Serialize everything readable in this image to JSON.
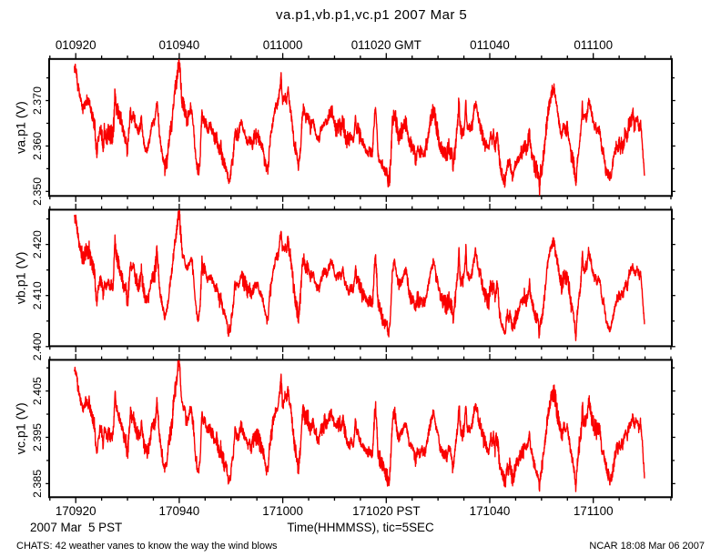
{
  "title": "va.p1,vb.p1,vc.p1 2007 Mar 5",
  "colors": {
    "background": "#ffffff",
    "axis": "#000000",
    "text": "#000000",
    "trace": "#fa0000"
  },
  "bottom_row": {
    "date_label": "2007 Mar  5 PST",
    "xaxis_label": "Time(HHMMSS), tic=5SEC"
  },
  "footer": {
    "left": "CHATS: 42 weather vanes to know the way the wind blows",
    "right": "NCAR 18:08 Mar 06 2007"
  },
  "chart_data": {
    "type": "line",
    "title": "va.p1,vb.p1,vc.p1 2007 Mar 5",
    "grid": false,
    "legend": false,
    "x_axis": {
      "label": "Time(HHMMSS), tic=5SEC",
      "top_tick_labels": [
        "010920",
        "010940",
        "011000",
        "011020 GMT",
        "011040",
        "011100"
      ],
      "bottom_tick_labels": [
        "170920",
        "170940",
        "171000",
        "171020 PST",
        "171040",
        "171100"
      ],
      "major_tick_seconds": 20,
      "minor_tick_seconds": 5,
      "domain_seconds": [
        -5.1,
        115.0
      ]
    },
    "panels": [
      {
        "name": "va.p1",
        "ylabel": "va.p1 (V)",
        "y_major_ticks": [
          2.35,
          2.36,
          2.37
        ],
        "y_major_labels": [
          "2.350",
          "2.360",
          "2.370"
        ],
        "y_minor_ticks": [
          2.355,
          2.365,
          2.375
        ],
        "ylim": [
          2.349,
          2.37916
        ],
        "transform": {
          "offset": 0.0,
          "scale": 1.0
        }
      },
      {
        "name": "vb.p1",
        "ylabel": "vb.p1 (V)",
        "y_major_ticks": [
          2.4,
          2.41,
          2.42
        ],
        "y_major_labels": [
          "2.400",
          "2.410",
          "2.420"
        ],
        "y_minor_ticks": [
          2.405,
          2.415,
          2.425
        ],
        "ylim": [
          2.40007,
          2.42681
        ],
        "transform": {
          "offset": 0.31796,
          "scale": 0.88639
        }
      },
      {
        "name": "vc.p1",
        "ylabel": "vc.p1 (V)",
        "y_major_ticks": [
          2.385,
          2.395,
          2.405
        ],
        "y_major_labels": [
          "2.385",
          "2.395",
          "2.405"
        ],
        "y_minor_ticks": [
          2.39,
          2.4,
          2.41
        ],
        "ylim": [
          2.38207,
          2.41172
        ],
        "transform": {
          "offset": 0.07357,
          "scale": 0.98276
        }
      }
    ],
    "series_anchors_va": [
      [
        -0.21,
        2.377
      ],
      [
        0.14,
        2.3755
      ],
      [
        0.49,
        2.373
      ],
      [
        0.84,
        2.3705
      ],
      [
        1.37,
        2.3685
      ],
      [
        1.9,
        2.37
      ],
      [
        2.6,
        2.3703
      ],
      [
        3.13,
        2.3665
      ],
      [
        3.66,
        2.3648
      ],
      [
        3.91,
        2.3596
      ],
      [
        4.12,
        2.3586
      ],
      [
        4.27,
        2.3608
      ],
      [
        4.54,
        2.363
      ],
      [
        4.8,
        2.3642
      ],
      [
        5.07,
        2.3628
      ],
      [
        5.35,
        2.36
      ],
      [
        5.51,
        2.3635
      ],
      [
        5.77,
        2.363
      ],
      [
        6.03,
        2.3618
      ],
      [
        6.3,
        2.3632
      ],
      [
        6.56,
        2.362
      ],
      [
        6.82,
        2.3628
      ],
      [
        7.09,
        2.3622
      ],
      [
        7.35,
        2.365
      ],
      [
        7.58,
        2.3728
      ],
      [
        7.79,
        2.369
      ],
      [
        8.06,
        2.3683
      ],
      [
        8.41,
        2.3668
      ],
      [
        8.76,
        2.3655
      ],
      [
        9.02,
        2.364
      ],
      [
        9.38,
        2.362
      ],
      [
        9.71,
        2.361
      ],
      [
        9.94,
        2.3578
      ],
      [
        10.15,
        2.3608
      ],
      [
        10.38,
        2.365
      ],
      [
        10.59,
        2.368
      ],
      [
        10.87,
        2.3662
      ],
      [
        11.12,
        2.3674
      ],
      [
        11.47,
        2.3644
      ],
      [
        11.84,
        2.3635
      ],
      [
        12.12,
        2.3624
      ],
      [
        12.37,
        2.363
      ],
      [
        12.68,
        2.366
      ],
      [
        12.89,
        2.363
      ],
      [
        13.16,
        2.3609
      ],
      [
        13.51,
        2.3595
      ],
      [
        13.86,
        2.359
      ],
      [
        14.21,
        2.361
      ],
      [
        14.74,
        2.3648
      ],
      [
        15.27,
        2.3649
      ],
      [
        15.73,
        2.37
      ],
      [
        16.15,
        2.3622
      ],
      [
        16.5,
        2.3595
      ],
      [
        17.2,
        2.3553
      ],
      [
        17.55,
        2.356
      ],
      [
        18.08,
        2.3615
      ],
      [
        18.61,
        2.3655
      ],
      [
        18.96,
        2.3707
      ],
      [
        19.49,
        2.3742
      ],
      [
        19.84,
        2.378
      ],
      [
        19.98,
        2.3787
      ],
      [
        20.25,
        2.3742
      ],
      [
        20.46,
        2.3706
      ],
      [
        20.72,
        2.369
      ],
      [
        20.95,
        2.3686
      ],
      [
        21.25,
        2.3664
      ],
      [
        21.6,
        2.3652
      ],
      [
        21.92,
        2.3672
      ],
      [
        22.22,
        2.3684
      ],
      [
        22.48,
        2.3673
      ],
      [
        22.74,
        2.365
      ],
      [
        23.01,
        2.36
      ],
      [
        23.32,
        2.3563
      ],
      [
        23.59,
        2.3549
      ],
      [
        23.8,
        2.3547
      ],
      [
        24.06,
        2.358
      ],
      [
        24.38,
        2.3677
      ],
      [
        24.59,
        2.3655
      ],
      [
        24.85,
        2.3663
      ],
      [
        25.12,
        2.365
      ],
      [
        25.47,
        2.3635
      ],
      [
        25.79,
        2.3645
      ],
      [
        26.17,
        2.3638
      ],
      [
        26.53,
        2.363
      ],
      [
        26.88,
        2.3618
      ],
      [
        27.23,
        2.3622
      ],
      [
        27.48,
        2.36
      ],
      [
        27.76,
        2.359
      ],
      [
        28.02,
        2.36
      ],
      [
        28.36,
        2.3577
      ],
      [
        28.64,
        2.3568
      ],
      [
        29.01,
        2.3557
      ],
      [
        29.23,
        2.3545
      ],
      [
        29.52,
        2.3522
      ],
      [
        29.87,
        2.3528
      ],
      [
        30.1,
        2.3557
      ],
      [
        30.48,
        2.358
      ],
      [
        30.75,
        2.3638
      ],
      [
        31.01,
        2.363
      ],
      [
        31.42,
        2.3623
      ],
      [
        31.84,
        2.3645
      ],
      [
        32.15,
        2.365
      ],
      [
        32.28,
        2.3638
      ],
      [
        32.59,
        2.363
      ],
      [
        32.93,
        2.362
      ],
      [
        33.21,
        2.3612
      ],
      [
        33.56,
        2.3618
      ],
      [
        33.91,
        2.3605
      ],
      [
        34.27,
        2.361
      ],
      [
        34.62,
        2.3628
      ],
      [
        34.88,
        2.3618
      ],
      [
        35.15,
        2.3625
      ],
      [
        35.5,
        2.361
      ],
      [
        35.76,
        2.3605
      ],
      [
        36.02,
        2.3598
      ],
      [
        36.29,
        2.3585
      ],
      [
        36.64,
        2.3559
      ],
      [
        36.94,
        2.3548
      ],
      [
        37.17,
        2.3552
      ],
      [
        37.43,
        2.36
      ],
      [
        38.14,
        2.3654
      ],
      [
        38.66,
        2.3682
      ],
      [
        39.19,
        2.37
      ],
      [
        39.67,
        2.3752
      ],
      [
        39.89,
        2.3705
      ],
      [
        40.25,
        2.37
      ],
      [
        40.49,
        2.3708
      ],
      [
        40.74,
        2.3698
      ],
      [
        41.0,
        2.3728
      ],
      [
        41.25,
        2.3698
      ],
      [
        41.48,
        2.369
      ],
      [
        42.01,
        2.3631
      ],
      [
        42.29,
        2.3602
      ],
      [
        42.71,
        2.3575
      ],
      [
        43.04,
        2.3552
      ],
      [
        43.41,
        2.36
      ],
      [
        43.82,
        2.3679
      ],
      [
        44.06,
        2.3682
      ],
      [
        44.33,
        2.3666
      ],
      [
        44.82,
        2.3666
      ],
      [
        45.35,
        2.3643
      ],
      [
        45.88,
        2.3655
      ],
      [
        46.19,
        2.363
      ],
      [
        46.67,
        2.3618
      ],
      [
        47.07,
        2.3615
      ],
      [
        47.3,
        2.3637
      ],
      [
        47.81,
        2.3645
      ],
      [
        48.16,
        2.3655
      ],
      [
        48.51,
        2.365
      ],
      [
        49.04,
        2.3668
      ],
      [
        49.31,
        2.3677
      ],
      [
        49.57,
        2.367
      ],
      [
        49.92,
        2.365
      ],
      [
        50.34,
        2.3637
      ],
      [
        50.62,
        2.3645
      ],
      [
        51.01,
        2.3652
      ],
      [
        51.22,
        2.364
      ],
      [
        51.66,
        2.3662
      ],
      [
        51.87,
        2.364
      ],
      [
        52.1,
        2.3625
      ],
      [
        52.38,
        2.3615
      ],
      [
        52.75,
        2.3608
      ],
      [
        53.19,
        2.362
      ],
      [
        53.63,
        2.361
      ],
      [
        53.84,
        2.3628
      ],
      [
        54.05,
        2.3665
      ],
      [
        54.28,
        2.363
      ],
      [
        54.49,
        2.3638
      ],
      [
        54.72,
        2.3625
      ],
      [
        55.02,
        2.3615
      ],
      [
        55.37,
        2.3605
      ],
      [
        55.73,
        2.36
      ],
      [
        56.08,
        2.359
      ],
      [
        56.43,
        2.3585
      ],
      [
        56.9,
        2.3592
      ],
      [
        57.13,
        2.3585
      ],
      [
        57.34,
        2.3582
      ],
      [
        57.75,
        2.367
      ],
      [
        57.92,
        2.3686
      ],
      [
        58.1,
        2.366
      ],
      [
        58.43,
        2.3579
      ],
      [
        58.87,
        2.3571
      ],
      [
        59.24,
        2.3556
      ],
      [
        59.65,
        2.3543
      ],
      [
        60.16,
        2.3538
      ],
      [
        60.4,
        2.3517
      ],
      [
        60.74,
        2.354
      ],
      [
        61.18,
        2.3655
      ],
      [
        61.62,
        2.3678
      ],
      [
        62.06,
        2.364
      ],
      [
        62.45,
        2.3621
      ],
      [
        62.76,
        2.3635
      ],
      [
        63.11,
        2.363
      ],
      [
        63.54,
        2.3654
      ],
      [
        63.91,
        2.365
      ],
      [
        64.45,
        2.3605
      ],
      [
        64.87,
        2.36
      ],
      [
        65.22,
        2.3595
      ],
      [
        65.72,
        2.3572
      ],
      [
        65.93,
        2.359
      ],
      [
        66.1,
        2.3592
      ],
      [
        66.46,
        2.3585
      ],
      [
        66.81,
        2.3595
      ],
      [
        67.16,
        2.3585
      ],
      [
        67.53,
        2.3585
      ],
      [
        67.86,
        2.361
      ],
      [
        68.25,
        2.3635
      ],
      [
        68.65,
        2.366
      ],
      [
        69.15,
        2.3681
      ],
      [
        69.53,
        2.3655
      ],
      [
        70.06,
        2.3625
      ],
      [
        70.41,
        2.3601
      ],
      [
        70.85,
        2.3595
      ],
      [
        71.33,
        2.3585
      ],
      [
        71.7,
        2.3577
      ],
      [
        72.05,
        2.3599
      ],
      [
        72.35,
        2.359
      ],
      [
        72.7,
        2.3575
      ],
      [
        72.89,
        2.3549
      ],
      [
        73.14,
        2.3572
      ],
      [
        73.51,
        2.3617
      ],
      [
        73.84,
        2.3655
      ],
      [
        74.05,
        2.3702
      ],
      [
        74.23,
        2.365
      ],
      [
        74.46,
        2.3632
      ],
      [
        74.78,
        2.3632
      ],
      [
        75.13,
        2.3648
      ],
      [
        75.39,
        2.3704
      ],
      [
        75.57,
        2.365
      ],
      [
        75.67,
        2.3645
      ],
      [
        76.13,
        2.3638
      ],
      [
        76.59,
        2.3645
      ],
      [
        76.94,
        2.368
      ],
      [
        77.27,
        2.369
      ],
      [
        77.48,
        2.3687
      ],
      [
        77.85,
        2.3655
      ],
      [
        78.24,
        2.364
      ],
      [
        78.4,
        2.3634
      ],
      [
        78.75,
        2.3621
      ],
      [
        79.12,
        2.3605
      ],
      [
        79.47,
        2.3595
      ],
      [
        79.82,
        2.359
      ],
      [
        80.21,
        2.3625
      ],
      [
        80.44,
        2.3604
      ],
      [
        80.7,
        2.3631
      ],
      [
        80.97,
        2.3595
      ],
      [
        81.21,
        2.361
      ],
      [
        81.44,
        2.363
      ],
      [
        81.67,
        2.36
      ],
      [
        81.88,
        2.3559
      ],
      [
        82.29,
        2.3545
      ],
      [
        82.53,
        2.3534
      ],
      [
        82.76,
        2.3524
      ],
      [
        82.97,
        2.3517
      ],
      [
        83.41,
        2.3562
      ],
      [
        83.62,
        2.3545
      ],
      [
        83.85,
        2.3566
      ],
      [
        84.05,
        2.355
      ],
      [
        84.27,
        2.3534
      ],
      [
        84.5,
        2.3527
      ],
      [
        84.75,
        2.3545
      ],
      [
        85.15,
        2.3558
      ],
      [
        85.59,
        2.3568
      ],
      [
        86.03,
        2.3594
      ],
      [
        86.33,
        2.3588
      ],
      [
        86.68,
        2.3599
      ],
      [
        87.04,
        2.3596
      ],
      [
        87.34,
        2.3602
      ],
      [
        87.69,
        2.363
      ],
      [
        87.77,
        2.3607
      ],
      [
        88.21,
        2.358
      ],
      [
        88.65,
        2.3558
      ],
      [
        88.87,
        2.3551
      ],
      [
        89.15,
        2.3545
      ],
      [
        89.41,
        2.3538
      ],
      [
        89.6,
        2.3507
      ],
      [
        89.78,
        2.354
      ],
      [
        89.96,
        2.3545
      ],
      [
        90.4,
        2.3577
      ],
      [
        90.84,
        2.363
      ],
      [
        91.28,
        2.3674
      ],
      [
        91.72,
        2.3706
      ],
      [
        92.23,
        2.3719
      ],
      [
        92.49,
        2.3717
      ],
      [
        92.75,
        2.37
      ],
      [
        93.02,
        2.3677
      ],
      [
        93.46,
        2.3645
      ],
      [
        93.9,
        2.3623
      ],
      [
        94.34,
        2.3648
      ],
      [
        94.69,
        2.3635
      ],
      [
        94.99,
        2.3647
      ],
      [
        95.3,
        2.362
      ],
      [
        95.64,
        2.3585
      ],
      [
        96.08,
        2.3566
      ],
      [
        96.36,
        2.3546
      ],
      [
        96.64,
        2.3509
      ],
      [
        96.82,
        2.3555
      ],
      [
        96.96,
        2.3572
      ],
      [
        97.38,
        2.3613
      ],
      [
        97.68,
        2.364
      ],
      [
        97.91,
        2.3696
      ],
      [
        98.05,
        2.366
      ],
      [
        98.29,
        2.366
      ],
      [
        98.7,
        2.366
      ],
      [
        98.91,
        2.368
      ],
      [
        99.14,
        2.3696
      ],
      [
        99.35,
        2.369
      ],
      [
        99.79,
        2.3661
      ],
      [
        100.23,
        2.3639
      ],
      [
        100.44,
        2.3648
      ],
      [
        100.67,
        2.3632
      ],
      [
        101.09,
        2.3644
      ],
      [
        101.32,
        2.3632
      ],
      [
        101.76,
        2.3586
      ],
      [
        101.97,
        2.3593
      ],
      [
        102.41,
        2.3554
      ],
      [
        102.85,
        2.3537
      ],
      [
        103.13,
        2.3532
      ],
      [
        103.29,
        2.3529
      ],
      [
        103.73,
        2.3554
      ],
      [
        104.15,
        2.3579
      ],
      [
        104.59,
        2.3599
      ],
      [
        104.82,
        2.3592
      ],
      [
        105.03,
        2.3604
      ],
      [
        105.26,
        2.3596
      ],
      [
        105.47,
        2.3609
      ],
      [
        105.7,
        2.3601
      ],
      [
        105.91,
        2.3616
      ],
      [
        106.12,
        2.3624
      ],
      [
        106.35,
        2.3629
      ],
      [
        106.56,
        2.3614
      ],
      [
        106.79,
        2.364
      ],
      [
        107.0,
        2.3649
      ],
      [
        107.44,
        2.3659
      ],
      [
        107.65,
        2.3668
      ],
      [
        107.88,
        2.3649
      ],
      [
        108.32,
        2.3659
      ],
      [
        108.53,
        2.3663
      ],
      [
        108.76,
        2.3647
      ],
      [
        108.97,
        2.3639
      ],
      [
        109.11,
        2.3655
      ],
      [
        109.41,
        2.3614
      ],
      [
        109.62,
        2.3579
      ],
      [
        109.85,
        2.3544
      ],
      [
        110.08,
        2.3531
      ]
    ],
    "noise": {
      "sample_hz": 30,
      "ar1": 0.1,
      "sd1": 0.00062,
      "ar2": 0.9,
      "sd2": 0.0003,
      "mod_ar": 0.97,
      "mod_sd": 0.45,
      "mod_min": 0.55,
      "mod_max": 2.15,
      "seeds": [
        113,
        227,
        331
      ],
      "spike_prob": 0.05,
      "spike_min": 0.0005,
      "spike_max": 0.0015
    },
    "data_t_range": [
      -0.25,
      109.9
    ]
  }
}
